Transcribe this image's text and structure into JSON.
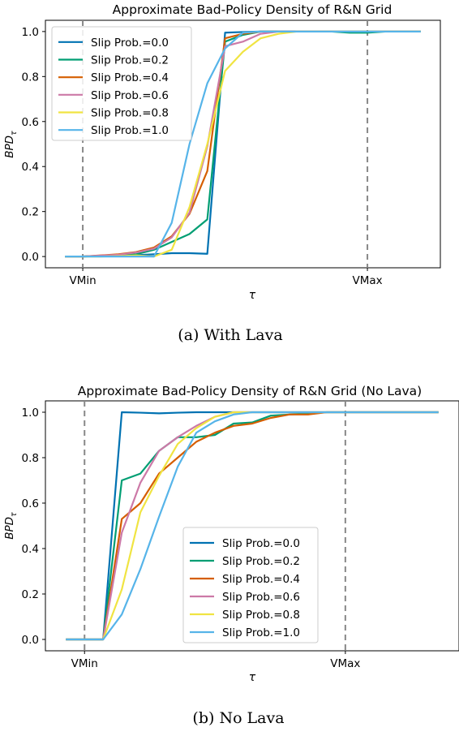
{
  "figure": {
    "caption_a": "(a)  With Lava",
    "caption_b": "(b)  No Lava"
  },
  "chart_data": [
    {
      "type": "line",
      "title": "Approximate Bad-Policy Density of R&N Grid",
      "xlabel": "τ",
      "ylabel": "BPD",
      "ylabel_sub": "τ",
      "x": [
        0,
        1,
        2,
        3,
        4,
        5,
        6,
        7,
        8,
        9,
        10,
        11,
        12,
        13,
        14,
        15,
        16,
        17,
        18,
        19,
        20
      ],
      "x_range": [
        -1.1,
        21.1
      ],
      "xticks": [
        {
          "label": "VMin",
          "value": 1
        },
        {
          "label": "VMax",
          "value": 17
        }
      ],
      "ylim": [
        -0.05,
        1.05
      ],
      "yticks": [
        "0.0",
        "0.2",
        "0.4",
        "0.6",
        "0.8",
        "1.0"
      ],
      "vlines": [
        1,
        17
      ],
      "legend_position": "upper-left",
      "series": [
        {
          "name": "Slip Prob.=0.0",
          "color": "#0072b2",
          "values": [
            0,
            0,
            0.003,
            0.004,
            0.006,
            0.01,
            0.015,
            0.015,
            0.012,
            0.995,
            0.998,
            1,
            1,
            1,
            1,
            1,
            1,
            1,
            1,
            1,
            1
          ]
        },
        {
          "name": "Slip Prob.=0.2",
          "color": "#009e73",
          "values": [
            0,
            0,
            0.003,
            0.006,
            0.01,
            0.03,
            0.065,
            0.1,
            0.165,
            0.955,
            0.985,
            1,
            1,
            1,
            1,
            1,
            0.995,
            0.995,
            1,
            1,
            1
          ]
        },
        {
          "name": "Slip Prob.=0.4",
          "color": "#d55e00",
          "values": [
            0,
            0,
            0.005,
            0.01,
            0.02,
            0.04,
            0.09,
            0.19,
            0.38,
            0.97,
            0.99,
            1,
            1,
            1,
            1,
            1,
            1,
            1,
            1,
            1,
            1
          ]
        },
        {
          "name": "Slip Prob.=0.6",
          "color": "#cc79a7",
          "values": [
            0,
            0,
            0.004,
            0.008,
            0.018,
            0.035,
            0.085,
            0.195,
            0.49,
            0.935,
            0.955,
            0.99,
            1,
            1,
            1,
            1,
            1,
            1,
            1,
            1,
            1
          ]
        },
        {
          "name": "Slip Prob.=0.8",
          "color": "#f0e442",
          "values": [
            0,
            0,
            0,
            0.002,
            0.005,
            0,
            0.03,
            0.22,
            0.5,
            0.825,
            0.91,
            0.97,
            0.99,
            1,
            1,
            1,
            1,
            1,
            1,
            1,
            1
          ]
        },
        {
          "name": "Slip Prob.=1.0",
          "color": "#56b4e9",
          "values": [
            0,
            0,
            0,
            0,
            0,
            0,
            0.15,
            0.5,
            0.77,
            0.925,
            0.995,
            1,
            1,
            1,
            1,
            1,
            1,
            1,
            1,
            1,
            1
          ]
        }
      ]
    },
    {
      "type": "line",
      "title": "Approximate Bad-Policy Density of R&N Grid (No Lava)",
      "xlabel": "τ",
      "ylabel": "BPD",
      "ylabel_sub": "τ",
      "x": [
        0,
        1,
        2,
        3,
        4,
        5,
        6,
        7,
        8,
        9,
        10,
        11,
        12,
        13,
        14,
        15,
        16,
        17,
        18,
        19,
        20
      ],
      "x_range": [
        -1.1,
        21.1
      ],
      "xticks": [
        {
          "label": "VMin",
          "value": 1
        },
        {
          "label": "VMax",
          "value": 15
        }
      ],
      "ylim": [
        -0.05,
        1.05
      ],
      "yticks": [
        "0.0",
        "0.2",
        "0.4",
        "0.6",
        "0.8",
        "1.0"
      ],
      "vlines": [
        1,
        15
      ],
      "legend_position": "lower-center",
      "series": [
        {
          "name": "Slip Prob.=0.0",
          "color": "#0072b2",
          "values": [
            0,
            0,
            0,
            1,
            0.998,
            0.995,
            0.998,
            1,
            1,
            1,
            1,
            1,
            1,
            1,
            1,
            1,
            1,
            1,
            1,
            1,
            1
          ]
        },
        {
          "name": "Slip Prob.=0.2",
          "color": "#009e73",
          "values": [
            0,
            0,
            0,
            0.7,
            0.73,
            0.83,
            0.89,
            0.89,
            0.9,
            0.95,
            0.955,
            0.985,
            0.99,
            0.995,
            1,
            1,
            1,
            1,
            1,
            1,
            1
          ]
        },
        {
          "name": "Slip Prob.=0.4",
          "color": "#d55e00",
          "values": [
            0,
            0,
            0,
            0.53,
            0.6,
            0.73,
            0.8,
            0.87,
            0.91,
            0.94,
            0.95,
            0.975,
            0.99,
            0.99,
            1,
            1,
            1,
            1,
            1,
            1,
            1
          ]
        },
        {
          "name": "Slip Prob.=0.6",
          "color": "#cc79a7",
          "values": [
            0,
            0,
            0,
            0.47,
            0.69,
            0.83,
            0.89,
            0.94,
            0.98,
            1,
            1,
            1,
            1,
            1,
            1,
            1,
            1,
            1,
            1,
            1,
            1
          ]
        },
        {
          "name": "Slip Prob.=0.8",
          "color": "#f0e442",
          "values": [
            0,
            0,
            0,
            0.22,
            0.56,
            0.72,
            0.86,
            0.93,
            0.98,
            1,
            1,
            1,
            1,
            1,
            1,
            1,
            1,
            1,
            1,
            1,
            1
          ]
        },
        {
          "name": "Slip Prob.=1.0",
          "color": "#56b4e9",
          "values": [
            0,
            0,
            0,
            0.11,
            0.31,
            0.54,
            0.76,
            0.91,
            0.96,
            0.99,
            1,
            1,
            1,
            1,
            1,
            1,
            1,
            1,
            1,
            1,
            1
          ]
        }
      ]
    }
  ]
}
